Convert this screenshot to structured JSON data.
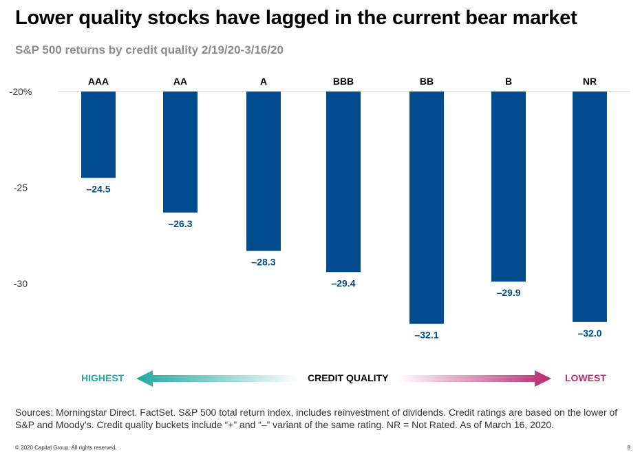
{
  "title": "Lower quality stocks have lagged in the current bear market",
  "subtitle": "S&P 500 returns by credit quality 2/19/20-3/16/20",
  "chart_data": {
    "type": "bar",
    "title": "Lower quality stocks have lagged in the current bear market",
    "subtitle": "S&P 500 returns by credit quality 2/19/20-3/16/20",
    "categories": [
      "AAA",
      "AA",
      "A",
      "BBB",
      "BB",
      "B",
      "NR"
    ],
    "values": [
      -24.5,
      -26.3,
      -28.3,
      -29.4,
      -32.1,
      -29.9,
      -32.0
    ],
    "value_labels": [
      "–24.5",
      "–26.3",
      "–28.3",
      "–29.4",
      "–32.1",
      "–29.9",
      "–32.0"
    ],
    "baseline": -20,
    "ylim": [
      -20,
      -34
    ],
    "y_ticks": [
      -20,
      -25,
      -30
    ],
    "y_tick_labels": [
      "-20%",
      "-25",
      "-30"
    ],
    "category_axis_position": "top",
    "bar_color": "#004b8d",
    "label_color": "#004b8d",
    "xlabel": "CREDIT QUALITY",
    "ylabel": ""
  },
  "legend": {
    "highest": "HIGHEST",
    "center": "CREDIT QUALITY",
    "lowest": "LOWEST",
    "highest_color": "#1fa9a0",
    "lowest_color": "#b82a72"
  },
  "sources": "Sources: Morningstar Direct. FactSet. S&P 500 total return index, includes reinvestment of dividends. Credit ratings are based on the lower of S&P and Moody’s. Credit quality buckets include “+” and “–” variant of the same rating. NR = Not Rated. As of March 16, 2020.",
  "footer": "© 2020 Capital Group. All rights reserved.",
  "page_number": "8"
}
